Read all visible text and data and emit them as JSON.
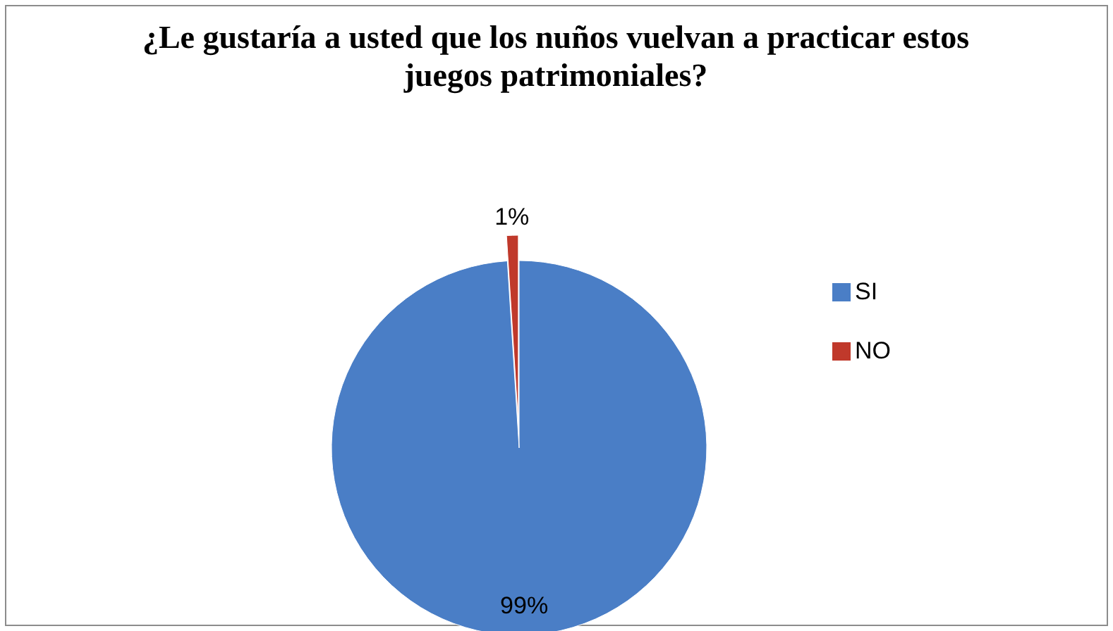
{
  "chart_data": {
    "type": "pie",
    "title": "¿Le gustaría a usted que los nuños vuelvan a practicar estos juegos patrimoniales?",
    "categories": [
      "SI",
      "NO"
    ],
    "values": [
      99,
      1
    ],
    "colors": [
      "#4a7ec6",
      "#c0392b"
    ],
    "value_labels": [
      "99%",
      "1%"
    ],
    "legend": "right"
  }
}
